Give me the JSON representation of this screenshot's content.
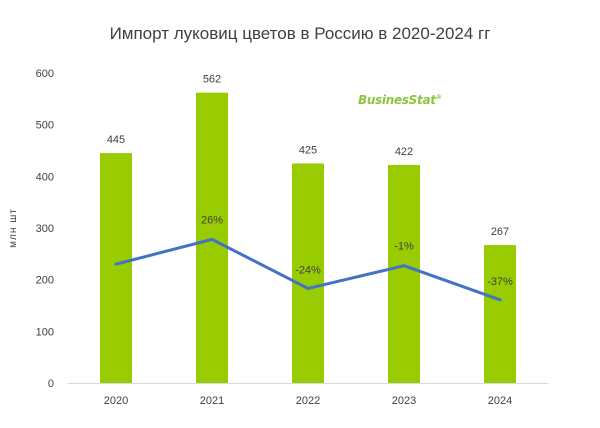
{
  "chart_data": {
    "type": "bar",
    "title": "Импорт луковиц цветов в Россию в 2020-2024 гг",
    "ylabel": "млн шт",
    "xlabel": "",
    "categories": [
      "2020",
      "2021",
      "2022",
      "2023",
      "2024"
    ],
    "ylim": [
      0,
      600
    ],
    "yticks": [
      "0",
      "100",
      "200",
      "300",
      "400",
      "500",
      "600"
    ],
    "series": [
      {
        "type": "bar",
        "values": [
          445,
          562,
          425,
          422,
          267
        ],
        "labels": [
          "445",
          "562",
          "425",
          "422",
          "267"
        ],
        "color": "#99cc00"
      },
      {
        "type": "line",
        "values": [
          230,
          278,
          183,
          227,
          161
        ],
        "labels": [
          "",
          "26%",
          "-24%",
          "-1%",
          "-37%"
        ],
        "color": "#4472c4"
      }
    ],
    "grid": false,
    "legend": "none"
  },
  "logo": {
    "text": "BusinesStat",
    "mark": "®"
  }
}
